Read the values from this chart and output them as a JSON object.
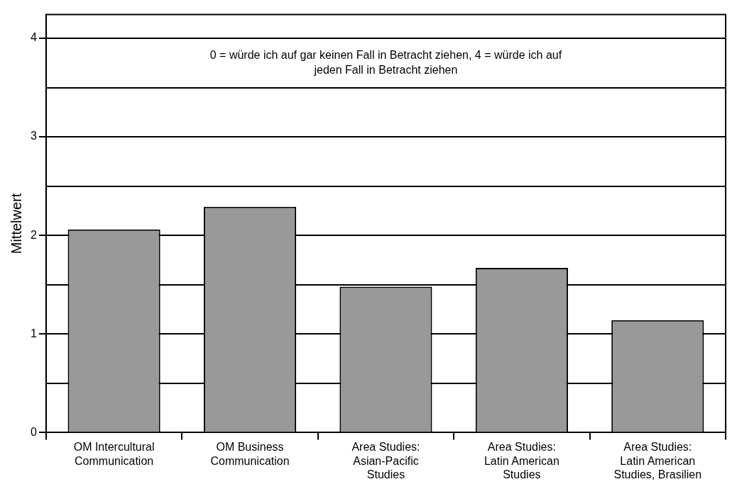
{
  "chart_data": {
    "type": "bar",
    "ylabel": "Mittelwert",
    "categories": [
      "OM Intercultural Communication",
      "OM Business Communication",
      "Area Studies: Asian-Pacific Studies",
      "Area Studies: Latin American Studies",
      "Area Studies: Latin American Studies, Brasilien"
    ],
    "values": [
      2.06,
      2.29,
      1.48,
      1.67,
      1.14
    ],
    "color": "#999999",
    "ylim": [
      0,
      4.24
    ],
    "yticks": [
      0,
      {
        "value": 0.5,
        "label": null
      },
      1,
      {
        "value": 1.5,
        "label": null
      },
      2,
      {
        "value": 2.5,
        "label": null
      },
      3,
      {
        "value": 3.5,
        "label": null
      },
      4
    ],
    "grid": "y",
    "legend": false,
    "annotations": [
      "0 = würde ich auf gar keinen Fall in Betracht ziehen, 4 = würde ich auf jeden Fall in Betracht ziehen"
    ]
  }
}
